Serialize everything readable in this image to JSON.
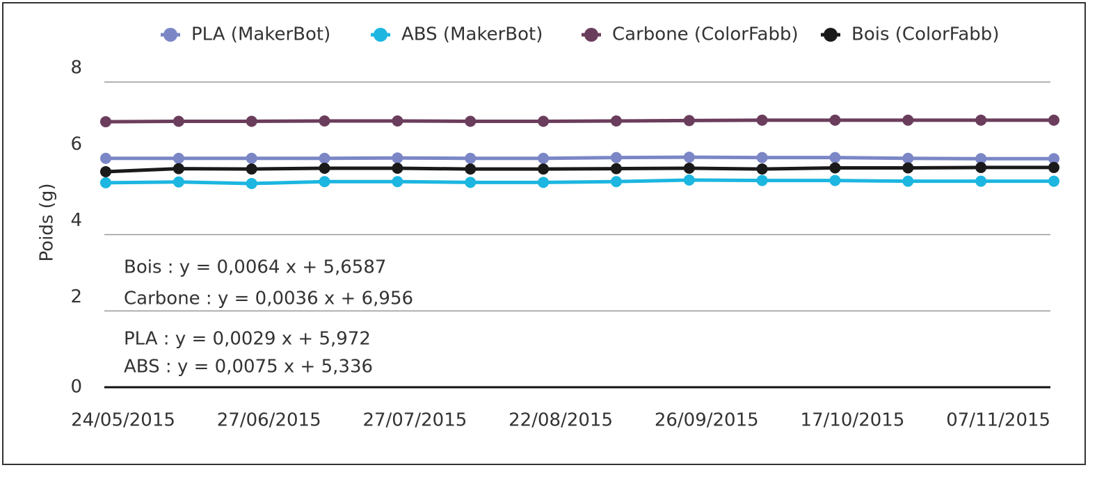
{
  "chart_data": {
    "type": "line",
    "y_label": "Poids (g)",
    "categories": [
      "24/05/2015",
      null,
      "27/06/2015",
      null,
      "27/07/2015",
      null,
      "22/08/2015",
      null,
      "26/09/2015",
      null,
      "17/10/2015",
      null,
      "07/11/2015",
      null
    ],
    "series": [
      {
        "name": "PLA (MakerBot)",
        "color": "#7b86c6",
        "values": [
          6.0,
          6.0,
          6.0,
          6.0,
          6.01,
          6.0,
          6.0,
          6.02,
          6.03,
          6.02,
          6.02,
          6.0,
          5.99,
          5.99
        ]
      },
      {
        "name": "ABS (MakerBot)",
        "color": "#1cb6e0",
        "values": [
          5.36,
          5.38,
          5.34,
          5.39,
          5.39,
          5.37,
          5.37,
          5.39,
          5.43,
          5.42,
          5.42,
          5.4,
          5.4,
          5.4
        ]
      },
      {
        "name": "Carbone (ColorFabb)",
        "color": "#6b3d5c",
        "values": [
          6.96,
          6.97,
          6.97,
          6.98,
          6.98,
          6.97,
          6.97,
          6.98,
          6.99,
          7.0,
          7.0,
          7.0,
          7.0,
          7.0
        ]
      },
      {
        "name": "Bois (ColorFabb)",
        "color": "#1a1a1a",
        "values": [
          5.65,
          5.73,
          5.72,
          5.74,
          5.74,
          5.72,
          5.72,
          5.73,
          5.74,
          5.72,
          5.75,
          5.75,
          5.76,
          5.76
        ]
      }
    ],
    "ylim": [
      0,
      8
    ],
    "yticks": [
      0,
      2,
      4,
      6,
      8
    ],
    "grid": true,
    "legend": "top",
    "annotations": [
      "Bois : y = 0,0064 x + 5,6587",
      "Carbone : y = 0,0036 x + 6,956",
      "PLA : y = 0,0029 x + 5,972",
      "ABS : y = 0,0075 x + 5,336"
    ]
  }
}
